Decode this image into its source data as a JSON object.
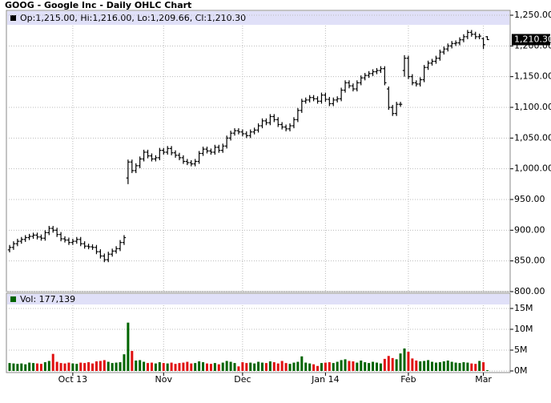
{
  "chart_data": [
    {
      "type": "ohlc",
      "title": "GOOG - Google Inc - Daily OHLC Chart",
      "legend_label": "Op:1,215.00, Hi:1,216.00, Lo:1,209.66, Cl:1,210.30",
      "categories": [
        null,
        null,
        null,
        null,
        null,
        null,
        null,
        null,
        null,
        null,
        null,
        null,
        null,
        null,
        null,
        null,
        "Oct 13",
        null,
        null,
        null,
        null,
        null,
        null,
        null,
        null,
        null,
        null,
        null,
        null,
        null,
        null,
        null,
        null,
        null,
        null,
        null,
        null,
        null,
        null,
        "Nov",
        null,
        null,
        null,
        null,
        null,
        null,
        null,
        null,
        null,
        null,
        null,
        null,
        null,
        null,
        null,
        null,
        null,
        null,
        null,
        "Dec",
        null,
        null,
        null,
        null,
        null,
        null,
        null,
        null,
        null,
        null,
        null,
        null,
        null,
        null,
        null,
        null,
        null,
        null,
        null,
        null,
        "Jan 14",
        null,
        null,
        null,
        null,
        null,
        null,
        null,
        null,
        null,
        null,
        null,
        null,
        null,
        null,
        null,
        null,
        null,
        null,
        null,
        null,
        "Feb",
        null,
        null,
        null,
        null,
        null,
        null,
        null,
        null,
        null,
        null,
        null,
        null,
        null,
        null,
        null,
        null,
        null,
        null,
        "Mar",
        null
      ],
      "open": [
        868,
        872,
        878,
        882,
        885,
        888,
        890,
        892,
        889,
        887,
        896,
        903,
        900,
        893,
        886,
        884,
        880,
        882,
        885,
        878,
        874,
        873,
        872,
        865,
        858,
        852,
        861,
        866,
        870,
        880,
        985,
        1011,
        997,
        1005,
        1016,
        1027,
        1021,
        1016,
        1018,
        1030,
        1027,
        1033,
        1026,
        1022,
        1018,
        1012,
        1010,
        1008,
        1012,
        1025,
        1032,
        1029,
        1027,
        1035,
        1030,
        1037,
        1050,
        1058,
        1062,
        1060,
        1057,
        1054,
        1060,
        1063,
        1070,
        1078,
        1075,
        1085,
        1080,
        1072,
        1068,
        1065,
        1070,
        1080,
        1095,
        1110,
        1112,
        1116,
        1114,
        1110,
        1120,
        1113,
        1106,
        1112,
        1114,
        1128,
        1140,
        1135,
        1130,
        1140,
        1148,
        1152,
        1155,
        1158,
        1160,
        1163,
        1130,
        1100,
        1090,
        1105,
        1160,
        1180,
        1150,
        1140,
        1138,
        1145,
        1165,
        1172,
        1175,
        1180,
        1190,
        1195,
        1200,
        1204,
        1205,
        1210,
        1215,
        1222,
        1219,
        1215,
        1212,
        1215
      ],
      "high": [
        876,
        882,
        886,
        889,
        892,
        894,
        896,
        896,
        893,
        900,
        907,
        907,
        904,
        897,
        890,
        888,
        886,
        889,
        889,
        882,
        878,
        877,
        876,
        869,
        862,
        865,
        870,
        874,
        884,
        892,
        1015,
        1015,
        1009,
        1020,
        1031,
        1031,
        1025,
        1022,
        1034,
        1034,
        1037,
        1037,
        1030,
        1026,
        1022,
        1016,
        1014,
        1016,
        1029,
        1036,
        1036,
        1033,
        1039,
        1039,
        1041,
        1054,
        1062,
        1066,
        1066,
        1064,
        1061,
        1064,
        1067,
        1074,
        1082,
        1082,
        1089,
        1089,
        1084,
        1076,
        1072,
        1074,
        1084,
        1099,
        1114,
        1116,
        1120,
        1120,
        1118,
        1124,
        1124,
        1117,
        1116,
        1118,
        1132,
        1144,
        1144,
        1139,
        1144,
        1152,
        1156,
        1159,
        1162,
        1164,
        1167,
        1167,
        1134,
        1104,
        1109,
        1109,
        1185,
        1184,
        1154,
        1144,
        1149,
        1169,
        1176,
        1179,
        1184,
        1194,
        1199,
        1204,
        1208,
        1209,
        1214,
        1219,
        1226,
        1226,
        1223,
        1220,
        1214,
        1216
      ],
      "low": [
        864,
        868,
        874,
        878,
        881,
        884,
        886,
        885,
        883,
        883,
        892,
        896,
        889,
        882,
        880,
        876,
        876,
        878,
        874,
        870,
        869,
        868,
        861,
        854,
        848,
        848,
        857,
        862,
        866,
        876,
        975,
        993,
        993,
        1001,
        1012,
        1017,
        1012,
        1012,
        1014,
        1023,
        1023,
        1022,
        1018,
        1014,
        1008,
        1006,
        1004,
        1004,
        1008,
        1021,
        1025,
        1023,
        1023,
        1026,
        1026,
        1033,
        1046,
        1054,
        1056,
        1053,
        1050,
        1050,
        1056,
        1059,
        1066,
        1071,
        1071,
        1076,
        1068,
        1064,
        1061,
        1061,
        1066,
        1076,
        1091,
        1106,
        1108,
        1110,
        1106,
        1106,
        1109,
        1102,
        1102,
        1108,
        1110,
        1124,
        1131,
        1126,
        1126,
        1136,
        1144,
        1148,
        1151,
        1154,
        1156,
        1136,
        1096,
        1086,
        1086,
        1101,
        1150,
        1146,
        1136,
        1134,
        1134,
        1141,
        1161,
        1168,
        1171,
        1176,
        1186,
        1191,
        1196,
        1200,
        1201,
        1206,
        1211,
        1215,
        1211,
        1211,
        1195,
        1209.66
      ],
      "close": [
        872,
        878,
        882,
        885,
        888,
        890,
        892,
        889,
        887,
        896,
        903,
        900,
        893,
        886,
        884,
        880,
        882,
        885,
        878,
        874,
        873,
        872,
        865,
        858,
        852,
        861,
        866,
        870,
        880,
        888,
        1011,
        997,
        1005,
        1016,
        1027,
        1021,
        1016,
        1018,
        1030,
        1027,
        1033,
        1026,
        1022,
        1018,
        1012,
        1010,
        1008,
        1012,
        1025,
        1032,
        1029,
        1027,
        1035,
        1030,
        1037,
        1050,
        1058,
        1062,
        1060,
        1057,
        1054,
        1060,
        1063,
        1070,
        1078,
        1075,
        1085,
        1080,
        1072,
        1068,
        1065,
        1070,
        1080,
        1095,
        1110,
        1112,
        1116,
        1114,
        1110,
        1120,
        1113,
        1106,
        1112,
        1114,
        1128,
        1140,
        1135,
        1130,
        1140,
        1148,
        1152,
        1155,
        1158,
        1160,
        1163,
        1140,
        1100,
        1090,
        1105,
        1105,
        1180,
        1150,
        1140,
        1138,
        1145,
        1165,
        1172,
        1175,
        1180,
        1190,
        1195,
        1200,
        1204,
        1205,
        1210,
        1215,
        1222,
        1219,
        1215,
        1216,
        1202,
        1210.3
      ],
      "color": "#000000",
      "grid": true,
      "last_price": {
        "value": 1210.3,
        "label": "1,210.30"
      },
      "ylim": [
        800,
        1250
      ],
      "yticks": [
        {
          "value": 800,
          "label": "800.00"
        },
        {
          "value": 850,
          "label": "850.00"
        },
        {
          "value": 900,
          "label": "900.00"
        },
        {
          "value": 950,
          "label": "950.00"
        },
        {
          "value": 1000,
          "label": "1,000.00"
        },
        {
          "value": 1050,
          "label": "1,050.00"
        },
        {
          "value": 1100,
          "label": "1,100.00"
        },
        {
          "value": 1150,
          "label": "1,150.00"
        },
        {
          "value": 1200,
          "label": "1,200.00"
        },
        {
          "value": 1250,
          "label": "1,250.00"
        }
      ]
    },
    {
      "type": "bar",
      "legend_label": "Vol: 177,139",
      "up_color": "#006400",
      "down_color": "#e01010",
      "grid": true,
      "values": [
        1900000,
        1800000,
        1700000,
        1800000,
        1600000,
        2000000,
        1900000,
        1800000,
        1700000,
        2100000,
        2400000,
        4100000,
        2200000,
        1900000,
        1800000,
        2000000,
        1800000,
        1700000,
        2000000,
        1900000,
        2100000,
        1800000,
        2300000,
        2400000,
        2600000,
        2200000,
        1900000,
        2000000,
        2100000,
        4000000,
        11600000,
        4800000,
        2500000,
        2600000,
        2200000,
        1900000,
        2000000,
        1800000,
        2100000,
        1900000,
        1800000,
        2000000,
        1700000,
        1900000,
        2000000,
        2200000,
        1800000,
        1900000,
        2300000,
        2100000,
        1800000,
        1700000,
        1900000,
        1600000,
        2000000,
        2400000,
        2200000,
        1900000,
        1100000,
        2100000,
        1900000,
        2000000,
        1800000,
        2200000,
        2000000,
        1900000,
        2300000,
        2100000,
        1800000,
        2400000,
        1900000,
        1700000,
        2000000,
        2200000,
        3500000,
        2000000,
        1800000,
        1600000,
        1200000,
        1900000,
        2000000,
        2100000,
        1900000,
        2200000,
        2600000,
        2800000,
        2400000,
        2300000,
        2000000,
        2500000,
        2100000,
        1900000,
        2200000,
        2000000,
        1800000,
        2900000,
        3600000,
        3100000,
        2800000,
        4200000,
        5400000,
        4600000,
        3000000,
        2500000,
        2300000,
        2400000,
        2600000,
        2200000,
        2000000,
        2100000,
        2300000,
        2500000,
        2200000,
        2000000,
        1900000,
        2100000,
        2000000,
        1800000,
        1700000,
        2400000,
        2100000,
        177139
      ],
      "ylim": [
        0,
        15000000
      ],
      "yticks": [
        {
          "value": 0,
          "label": "0M"
        },
        {
          "value": 5000000,
          "label": "5M"
        },
        {
          "value": 10000000,
          "label": "10M"
        },
        {
          "value": 15000000,
          "label": "15M"
        }
      ]
    }
  ]
}
